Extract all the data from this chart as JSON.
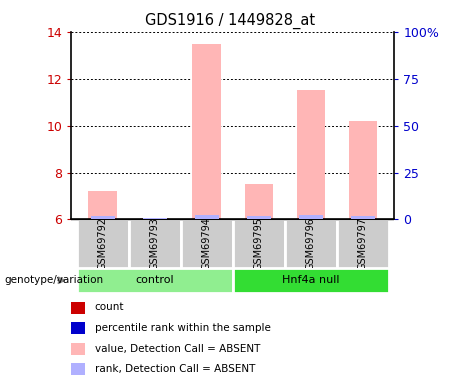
{
  "title": "GDS1916 / 1449828_at",
  "samples": [
    "GSM69792",
    "GSM69793",
    "GSM69794",
    "GSM69795",
    "GSM69796",
    "GSM69797"
  ],
  "values_absent": [
    7.2,
    6.05,
    13.5,
    7.5,
    11.5,
    10.2
  ],
  "rank_absent_pct": [
    2.0,
    1.0,
    2.5,
    2.0,
    2.5,
    2.0
  ],
  "ylim_left": [
    6,
    14
  ],
  "ylim_right": [
    0,
    100
  ],
  "yticks_left": [
    6,
    8,
    10,
    12,
    14
  ],
  "yticks_right": [
    0,
    25,
    50,
    75,
    100
  ],
  "ytick_labels_right": [
    "0",
    "25",
    "50",
    "75",
    "100%"
  ],
  "groups": [
    {
      "label": "control",
      "start": 0,
      "end": 3,
      "color": "#90ee90"
    },
    {
      "label": "Hnf4a null",
      "start": 3,
      "end": 6,
      "color": "#33dd33"
    }
  ],
  "bar_color_absent": "#ffb6b6",
  "bar_color_rank": "#b0b0ff",
  "bar_width": 0.55,
  "ylabel_left_color": "#cc0000",
  "ylabel_right_color": "#0000cc",
  "legend_items": [
    {
      "color": "#cc0000",
      "label": "count"
    },
    {
      "color": "#0000cc",
      "label": "percentile rank within the sample"
    },
    {
      "color": "#ffb6b6",
      "label": "value, Detection Call = ABSENT"
    },
    {
      "color": "#b0b0ff",
      "label": "rank, Detection Call = ABSENT"
    }
  ],
  "sample_box_color": "#cccccc",
  "genotype_label": "genotype/variation"
}
